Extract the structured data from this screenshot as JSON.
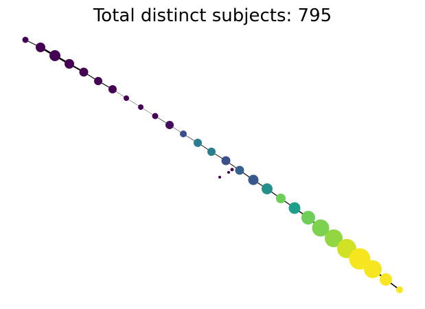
{
  "title": "Total distinct subjects: 795",
  "colormap": "viridis",
  "nodes": [
    {
      "id": "n1",
      "value": 0.0,
      "size": 4.5
    },
    {
      "id": "n2",
      "value": 0.0,
      "size": 7
    },
    {
      "id": "n3",
      "value": 0.0,
      "size": 8
    },
    {
      "id": "n4",
      "value": 0.0,
      "size": 7
    },
    {
      "id": "n5",
      "value": 0.0,
      "size": 6.5
    },
    {
      "id": "n6",
      "value": 0.0,
      "size": 6
    },
    {
      "id": "n7",
      "value": 0.0,
      "size": 6
    },
    {
      "id": "n8",
      "value": 0.0,
      "size": 4
    },
    {
      "id": "n9",
      "value": 0.0,
      "size": 4
    },
    {
      "id": "n10",
      "value": 0.0,
      "size": 4.5
    },
    {
      "id": "n11",
      "value": 0.03,
      "size": 6
    },
    {
      "id": "n12",
      "value": 0.22,
      "size": 5
    },
    {
      "id": "n13",
      "value": 0.38,
      "size": 6
    },
    {
      "id": "n14",
      "value": 0.38,
      "size": 6
    },
    {
      "id": "n15",
      "value": 0.22,
      "size": 6.5
    },
    {
      "id": "n16",
      "value": 0.28,
      "size": 6.5
    },
    {
      "id": "n17",
      "value": 0.25,
      "size": 7.5
    },
    {
      "id": "n18",
      "value": 0.45,
      "size": 8
    },
    {
      "id": "n19",
      "value": 0.7,
      "size": 7
    },
    {
      "id": "n20",
      "value": 0.5,
      "size": 8.5
    },
    {
      "id": "n21",
      "value": 0.7,
      "size": 10
    },
    {
      "id": "n22",
      "value": 0.72,
      "size": 12.5
    },
    {
      "id": "n23",
      "value": 0.75,
      "size": 13
    },
    {
      "id": "n24",
      "value": 0.85,
      "size": 14
    },
    {
      "id": "n25",
      "value": 0.95,
      "size": 15.5
    },
    {
      "id": "n26",
      "value": 0.96,
      "size": 13
    },
    {
      "id": "n27",
      "value": 0.97,
      "size": 9
    },
    {
      "id": "n28",
      "value": 0.98,
      "size": 5
    },
    {
      "id": "o1",
      "value": 0.0,
      "size": 2.5
    },
    {
      "id": "o2",
      "value": 0.0,
      "size": 2
    },
    {
      "id": "o3",
      "value": 0.0,
      "size": 2
    }
  ],
  "edges": [
    {
      "source": "n1",
      "target": "n2",
      "weight": 1.0
    },
    {
      "source": "n2",
      "target": "n3",
      "weight": 2.5
    },
    {
      "source": "n3",
      "target": "n4",
      "weight": 2.5
    },
    {
      "source": "n4",
      "target": "n5",
      "weight": 2.0
    },
    {
      "source": "n5",
      "target": "n6",
      "weight": 1.2
    },
    {
      "source": "n6",
      "target": "n7",
      "weight": 1.2
    },
    {
      "source": "n7",
      "target": "n8",
      "weight": 0.5
    },
    {
      "source": "n8",
      "target": "n9",
      "weight": 0.4
    },
    {
      "source": "n9",
      "target": "n10",
      "weight": 0.4
    },
    {
      "source": "n10",
      "target": "n11",
      "weight": 0.6
    },
    {
      "source": "n11",
      "target": "n12",
      "weight": 0.5
    },
    {
      "source": "n12",
      "target": "n13",
      "weight": 0.6
    },
    {
      "source": "n13",
      "target": "n14",
      "weight": 0.8
    },
    {
      "source": "n14",
      "target": "n15",
      "weight": 1.0
    },
    {
      "source": "n15",
      "target": "n16",
      "weight": 1.0
    },
    {
      "source": "n16",
      "target": "n17",
      "weight": 1.2
    },
    {
      "source": "n17",
      "target": "n18",
      "weight": 1.2
    },
    {
      "source": "n18",
      "target": "n19",
      "weight": 1.2
    },
    {
      "source": "n19",
      "target": "n20",
      "weight": 1.2
    },
    {
      "source": "n20",
      "target": "n21",
      "weight": 1.4
    },
    {
      "source": "n21",
      "target": "n22",
      "weight": 1.6
    },
    {
      "source": "n22",
      "target": "n23",
      "weight": 1.8
    },
    {
      "source": "n23",
      "target": "n24",
      "weight": 2.0
    },
    {
      "source": "n24",
      "target": "n25",
      "weight": 2.0
    },
    {
      "source": "n25",
      "target": "n26",
      "weight": 2.0
    },
    {
      "source": "n26",
      "target": "n27",
      "weight": 2.0
    },
    {
      "source": "n27",
      "target": "n28",
      "weight": 1.6
    }
  ]
}
